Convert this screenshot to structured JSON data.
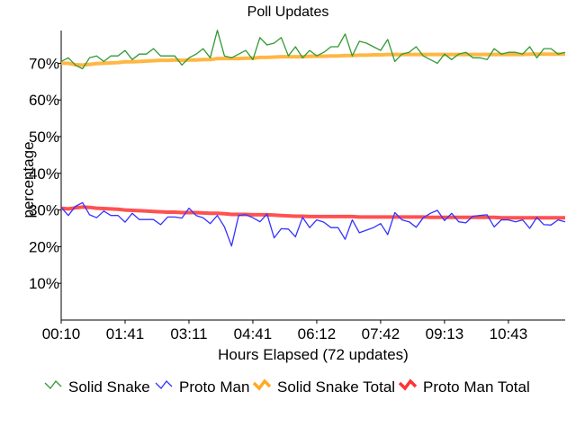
{
  "chart_data": {
    "type": "line",
    "title": "Poll Updates",
    "xlabel": "Hours Elapsed (72 updates)",
    "ylabel": "percentage",
    "ylim": [
      0,
      78
    ],
    "yticks": [
      "10%",
      "20%",
      "30%",
      "40%",
      "50%",
      "60%",
      "70%"
    ],
    "ytick_values": [
      10,
      20,
      30,
      40,
      50,
      60,
      70
    ],
    "xticks": [
      "00:10",
      "01:41",
      "03:11",
      "04:41",
      "06:12",
      "07:42",
      "09:13",
      "10:43"
    ],
    "xtick_indices": [
      0,
      9,
      18,
      27,
      36,
      45,
      54,
      63
    ],
    "grid": false,
    "legend_position": "bottom",
    "series": [
      {
        "name": "Solid Snake",
        "color": "#339933",
        "style": "thin",
        "values": [
          70.5,
          71.5,
          69.5,
          68.5,
          71.5,
          72,
          70.5,
          72,
          72,
          73.5,
          71,
          72.5,
          72.5,
          74,
          72,
          72,
          72,
          69.5,
          71.5,
          72.5,
          74,
          71.5,
          79,
          72,
          71.5,
          72.5,
          73.5,
          71,
          77,
          75,
          75.5,
          77,
          72,
          74.5,
          71.5,
          73.5,
          72,
          73,
          74.5,
          74.5,
          78,
          72,
          76,
          75.5,
          74.5,
          73.5,
          76.5,
          70.5,
          72.5,
          73,
          74.5,
          72,
          71,
          70,
          72.5,
          71,
          72.5,
          73,
          71.5,
          71.5,
          71,
          74,
          72.5,
          73,
          73,
          72.5,
          74.5,
          71.5,
          74,
          74,
          72.5,
          73
        ]
      },
      {
        "name": "Proto Man",
        "color": "#3333ff",
        "style": "thin",
        "values": [
          30.7,
          28.5,
          31,
          32,
          28.7,
          27.9,
          29.7,
          28.5,
          28.5,
          26.7,
          29.1,
          27.4,
          27.4,
          27.4,
          26,
          28.1,
          28.1,
          27.8,
          30.5,
          28.5,
          27.9,
          26.3,
          28.5,
          25.4,
          20.2,
          28.5,
          28.7,
          27.9,
          26.8,
          28.9,
          22.4,
          24.9,
          24.8,
          22.7,
          28,
          25.2,
          27.3,
          26.7,
          25.2,
          25.2,
          22,
          27.3,
          23.8,
          24.5,
          25.2,
          26.3,
          23.3,
          29.3,
          27.3,
          26.8,
          25.3,
          27.9,
          29.1,
          29.9,
          27.1,
          29.1,
          26.8,
          26.5,
          28.3,
          28.5,
          28.7,
          25.4,
          27.3,
          27.3,
          26.8,
          27.3,
          25,
          28,
          26,
          25.9,
          27.3,
          26.8
        ]
      },
      {
        "name": "Solid Snake Total",
        "color": "#ffaa22",
        "style": "thick",
        "values": [
          70,
          70,
          69.6,
          69.5,
          69.7,
          69.9,
          70,
          70.1,
          70.2,
          70.4,
          70.4,
          70.5,
          70.6,
          70.7,
          70.8,
          70.8,
          70.9,
          70.8,
          70.9,
          70.9,
          71,
          71,
          71.3,
          71.3,
          71.3,
          71.3,
          71.4,
          71.4,
          71.6,
          71.6,
          71.7,
          71.8,
          71.8,
          71.8,
          71.8,
          71.9,
          71.9,
          71.9,
          72,
          72,
          72.1,
          72.1,
          72.2,
          72.2,
          72.3,
          72.3,
          72.4,
          72.4,
          72.4,
          72.4,
          72.4,
          72.4,
          72.4,
          72.4,
          72.4,
          72.4,
          72.4,
          72.4,
          72.4,
          72.4,
          72.4,
          72.4,
          72.4,
          72.4,
          72.4,
          72.4,
          72.5,
          72.5,
          72.5,
          72.5,
          72.5,
          72.5
        ]
      },
      {
        "name": "Proto Man Total",
        "color": "#ff3333",
        "style": "thick",
        "values": [
          30.5,
          30.3,
          30.6,
          30.8,
          30.7,
          30.5,
          30.4,
          30.3,
          30.2,
          30,
          29.9,
          29.8,
          29.7,
          29.6,
          29.5,
          29.4,
          29.4,
          29.3,
          29.3,
          29.3,
          29.2,
          29.1,
          29.1,
          29,
          28.8,
          28.8,
          28.8,
          28.7,
          28.7,
          28.7,
          28.6,
          28.5,
          28.4,
          28.3,
          28.3,
          28.2,
          28.2,
          28.2,
          28.2,
          28.2,
          28.2,
          28.2,
          28.1,
          28.1,
          28.1,
          28.1,
          28.1,
          28.1,
          28.1,
          28.1,
          28.1,
          28.1,
          28,
          28,
          28,
          28,
          28,
          28,
          28,
          28,
          28,
          28,
          27.9,
          27.9,
          27.9,
          27.9,
          27.9,
          27.9,
          27.9,
          27.9,
          27.9,
          27.9
        ]
      }
    ]
  }
}
